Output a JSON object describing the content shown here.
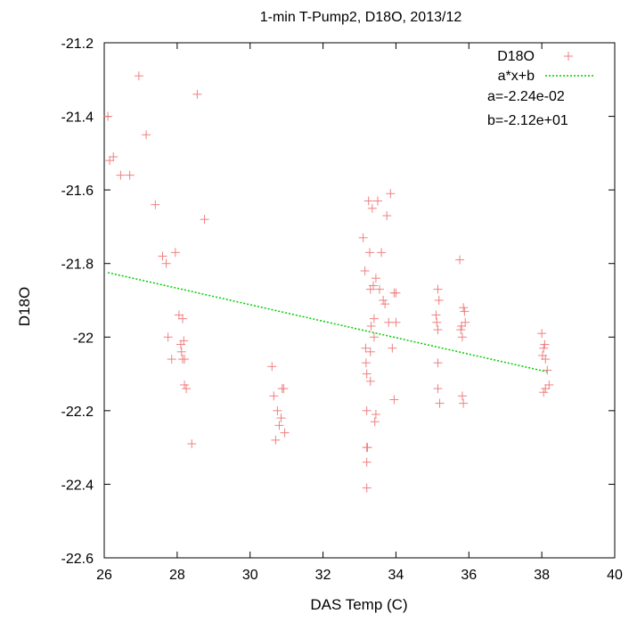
{
  "chart_data": {
    "type": "scatter",
    "title": "1-min T-Pump2, D18O, 2013/12",
    "xlabel": "DAS Temp (C)",
    "ylabel": "D18O",
    "xlim": [
      26,
      40
    ],
    "ylim": [
      -22.6,
      -21.2
    ],
    "xticks": [
      26,
      28,
      30,
      32,
      34,
      36,
      38,
      40
    ],
    "yticks": [
      -21.2,
      -21.4,
      -21.6,
      -21.8,
      -22,
      -22.2,
      -22.4,
      -22.6
    ],
    "xtick_labels": [
      "26",
      "28",
      "30",
      "32",
      "34",
      "36",
      "38",
      "40"
    ],
    "ytick_labels": [
      "-21.2",
      "-21.4",
      "-21.6",
      "-21.8",
      "-22",
      "-22.2",
      "-22.4",
      "-22.6"
    ],
    "grid": false,
    "legend_position": "top-right",
    "series": [
      {
        "name": "D18O",
        "kind": "scatter",
        "marker": "plus",
        "color": "#f08080",
        "points": [
          [
            26.1,
            -21.4
          ],
          [
            26.15,
            -21.52
          ],
          [
            26.25,
            -21.51
          ],
          [
            26.45,
            -21.56
          ],
          [
            26.7,
            -21.56
          ],
          [
            26.95,
            -21.29
          ],
          [
            27.15,
            -21.45
          ],
          [
            27.4,
            -21.64
          ],
          [
            27.6,
            -21.78
          ],
          [
            27.7,
            -21.8
          ],
          [
            27.75,
            -22.0
          ],
          [
            27.85,
            -22.06
          ],
          [
            27.95,
            -21.77
          ],
          [
            28.05,
            -21.94
          ],
          [
            28.1,
            -22.02
          ],
          [
            28.12,
            -22.04
          ],
          [
            28.15,
            -21.95
          ],
          [
            28.15,
            -22.06
          ],
          [
            28.18,
            -22.01
          ],
          [
            28.2,
            -22.06
          ],
          [
            28.2,
            -22.13
          ],
          [
            28.25,
            -22.14
          ],
          [
            28.4,
            -22.29
          ],
          [
            28.55,
            -21.34
          ],
          [
            28.75,
            -21.68
          ],
          [
            30.6,
            -22.08
          ],
          [
            30.65,
            -22.16
          ],
          [
            30.7,
            -22.28
          ],
          [
            30.75,
            -22.2
          ],
          [
            30.8,
            -22.24
          ],
          [
            30.85,
            -22.22
          ],
          [
            30.88,
            -22.14
          ],
          [
            30.92,
            -22.14
          ],
          [
            30.95,
            -22.26
          ],
          [
            33.1,
            -21.73
          ],
          [
            33.15,
            -21.82
          ],
          [
            33.17,
            -22.03
          ],
          [
            33.18,
            -22.07
          ],
          [
            33.2,
            -22.1
          ],
          [
            33.2,
            -22.2
          ],
          [
            33.2,
            -22.3
          ],
          [
            33.22,
            -22.3
          ],
          [
            33.2,
            -22.34
          ],
          [
            33.2,
            -22.41
          ],
          [
            33.25,
            -21.63
          ],
          [
            33.28,
            -21.77
          ],
          [
            33.3,
            -21.87
          ],
          [
            33.3,
            -22.04
          ],
          [
            33.3,
            -22.12
          ],
          [
            33.32,
            -21.97
          ],
          [
            33.35,
            -21.65
          ],
          [
            33.38,
            -21.86
          ],
          [
            33.4,
            -21.95
          ],
          [
            33.4,
            -22.0
          ],
          [
            33.42,
            -22.23
          ],
          [
            33.45,
            -21.84
          ],
          [
            33.45,
            -22.21
          ],
          [
            33.5,
            -21.63
          ],
          [
            33.55,
            -21.87
          ],
          [
            33.6,
            -21.77
          ],
          [
            33.65,
            -21.9
          ],
          [
            33.7,
            -21.91
          ],
          [
            33.75,
            -21.67
          ],
          [
            33.8,
            -21.96
          ],
          [
            33.85,
            -21.61
          ],
          [
            33.9,
            -22.03
          ],
          [
            33.95,
            -21.88
          ],
          [
            33.95,
            -22.17
          ],
          [
            34.0,
            -21.88
          ],
          [
            34.0,
            -21.96
          ],
          [
            35.1,
            -21.94
          ],
          [
            35.12,
            -21.96
          ],
          [
            35.15,
            -21.87
          ],
          [
            35.15,
            -21.98
          ],
          [
            35.15,
            -22.07
          ],
          [
            35.15,
            -22.14
          ],
          [
            35.18,
            -21.9
          ],
          [
            35.2,
            -22.18
          ],
          [
            35.75,
            -21.79
          ],
          [
            35.78,
            -21.98
          ],
          [
            35.8,
            -21.97
          ],
          [
            35.82,
            -22.0
          ],
          [
            35.82,
            -22.16
          ],
          [
            35.85,
            -21.92
          ],
          [
            35.85,
            -22.18
          ],
          [
            35.88,
            -21.93
          ],
          [
            35.9,
            -21.96
          ],
          [
            38.0,
            -21.99
          ],
          [
            38.02,
            -22.05
          ],
          [
            38.05,
            -22.03
          ],
          [
            38.05,
            -22.15
          ],
          [
            38.08,
            -22.02
          ],
          [
            38.1,
            -22.06
          ],
          [
            38.1,
            -22.14
          ],
          [
            38.15,
            -22.09
          ],
          [
            38.2,
            -22.13
          ]
        ]
      },
      {
        "name": "a*x+b",
        "kind": "line",
        "style": "dotted",
        "color": "#00cc00",
        "x": [
          26.1,
          38.15
        ],
        "y": [
          -21.8246,
          -22.0945
        ]
      }
    ],
    "annotations": [
      "a=-2.24e-02",
      "b=-2.12e+01"
    ]
  }
}
